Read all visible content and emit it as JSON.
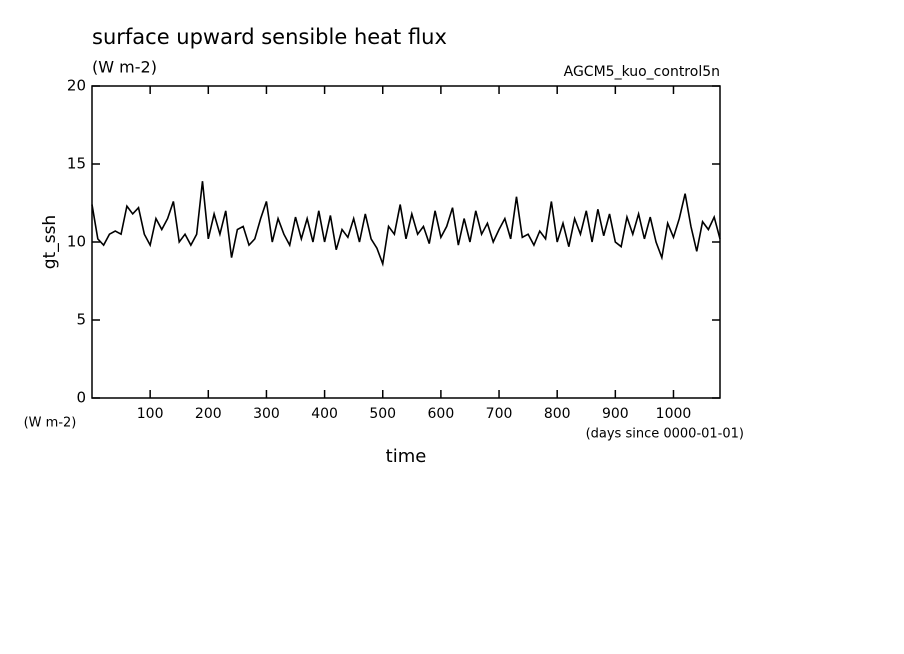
{
  "chart_data": {
    "type": "line",
    "title": "surface upward sensible heat flux",
    "subtitle": "(W m-2)",
    "annotation": "AGCM5_kuo_control5n",
    "ylabel": "gt_ssh",
    "yunit": "(W m-2)",
    "xlabel": "time",
    "xunit": "(days since 0000-01-01)",
    "xlim": [
      0,
      1080
    ],
    "ylim": [
      0,
      20
    ],
    "xticks": [
      100,
      200,
      300,
      400,
      500,
      600,
      700,
      800,
      900,
      1000
    ],
    "yticks": [
      0,
      5,
      10,
      15,
      20
    ],
    "series": [
      {
        "name": "gt_ssh",
        "color": "#000000",
        "x": [
          0,
          10,
          20,
          30,
          40,
          50,
          60,
          70,
          80,
          90,
          100,
          110,
          120,
          130,
          140,
          150,
          160,
          170,
          180,
          190,
          200,
          210,
          220,
          230,
          240,
          250,
          260,
          270,
          280,
          290,
          300,
          310,
          320,
          330,
          340,
          350,
          360,
          370,
          380,
          390,
          400,
          410,
          420,
          430,
          440,
          450,
          460,
          470,
          480,
          490,
          500,
          510,
          520,
          530,
          540,
          550,
          560,
          570,
          580,
          590,
          600,
          610,
          620,
          630,
          640,
          650,
          660,
          670,
          680,
          690,
          700,
          710,
          720,
          730,
          740,
          750,
          760,
          770,
          780,
          790,
          800,
          810,
          820,
          830,
          840,
          850,
          860,
          870,
          880,
          890,
          900,
          910,
          920,
          930,
          940,
          950,
          960,
          970,
          980,
          990,
          1000,
          1010,
          1020,
          1030,
          1040,
          1050,
          1060,
          1070,
          1080
        ],
        "values": [
          12.4,
          10.2,
          9.8,
          10.5,
          10.7,
          10.5,
          12.3,
          11.8,
          12.2,
          10.5,
          9.8,
          11.5,
          10.8,
          11.5,
          12.6,
          10.0,
          10.5,
          9.8,
          10.5,
          13.9,
          10.2,
          11.8,
          10.5,
          12.0,
          9.0,
          10.8,
          11.0,
          9.8,
          10.2,
          11.5,
          12.6,
          10.0,
          11.5,
          10.5,
          9.8,
          11.6,
          10.2,
          11.5,
          10.0,
          12.0,
          10.0,
          11.7,
          9.5,
          10.8,
          10.3,
          11.5,
          10.0,
          11.8,
          10.2,
          9.6,
          8.6,
          11.0,
          10.5,
          12.4,
          10.2,
          11.8,
          10.5,
          11.0,
          9.9,
          12.0,
          10.3,
          11.0,
          12.2,
          9.8,
          11.5,
          10.0,
          12.0,
          10.5,
          11.2,
          10.0,
          10.8,
          11.5,
          10.2,
          12.9,
          10.3,
          10.5,
          9.8,
          10.7,
          10.2,
          12.6,
          10.0,
          11.2,
          9.7,
          11.5,
          10.5,
          12.0,
          10.0,
          12.1,
          10.4,
          11.8,
          10.0,
          9.7,
          11.6,
          10.5,
          11.8,
          10.2,
          11.6,
          10.0,
          9.0,
          11.2,
          10.3,
          11.5,
          13.1,
          11.0,
          9.4,
          11.3,
          10.8,
          11.6,
          10.2
        ]
      }
    ]
  }
}
